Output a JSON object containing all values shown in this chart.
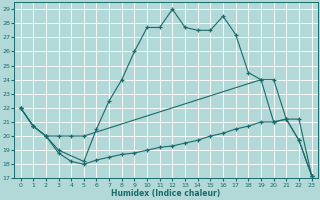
{
  "title": "",
  "xlabel": "Humidex (Indice chaleur)",
  "background_color": "#b2d8d8",
  "grid_color": "#ffffff",
  "line_color": "#1a6b6b",
  "xlim": [
    -0.5,
    23.5
  ],
  "ylim": [
    17,
    29.5
  ],
  "yticks": [
    17,
    18,
    19,
    20,
    21,
    22,
    23,
    24,
    25,
    26,
    27,
    28,
    29
  ],
  "xticks": [
    0,
    1,
    2,
    3,
    4,
    5,
    6,
    7,
    8,
    9,
    10,
    11,
    12,
    13,
    14,
    15,
    16,
    17,
    18,
    19,
    20,
    21,
    22,
    23
  ],
  "line1_x": [
    0,
    1,
    2,
    3,
    5,
    6,
    7,
    8,
    9,
    10,
    11,
    12,
    13,
    14,
    15,
    16,
    17,
    18,
    19,
    20,
    21,
    22,
    23
  ],
  "line1_y": [
    22,
    20.7,
    20,
    19,
    18.2,
    20.5,
    22.5,
    24.0,
    26.0,
    27.7,
    27.7,
    29.0,
    27.7,
    27.5,
    27.5,
    28.5,
    27.2,
    24.5,
    24.0,
    21.0,
    21.2,
    19.7,
    17.2
  ],
  "line2_x": [
    0,
    1,
    2,
    3,
    4,
    5,
    19,
    20,
    21,
    22,
    23
  ],
  "line2_y": [
    22,
    20.7,
    20,
    20,
    20,
    20,
    24.0,
    24.0,
    21.2,
    21.2,
    17.2
  ],
  "line3_x": [
    0,
    1,
    2,
    3,
    4,
    5,
    6,
    7,
    8,
    9,
    10,
    11,
    12,
    13,
    14,
    15,
    16,
    17,
    18,
    19,
    20,
    21,
    22,
    23
  ],
  "line3_y": [
    22,
    20.7,
    20,
    18.8,
    18.2,
    18.0,
    18.3,
    18.5,
    18.7,
    18.8,
    19.0,
    19.2,
    19.3,
    19.5,
    19.7,
    20.0,
    20.2,
    20.5,
    20.7,
    21.0,
    21.0,
    21.2,
    19.7,
    17.2
  ]
}
